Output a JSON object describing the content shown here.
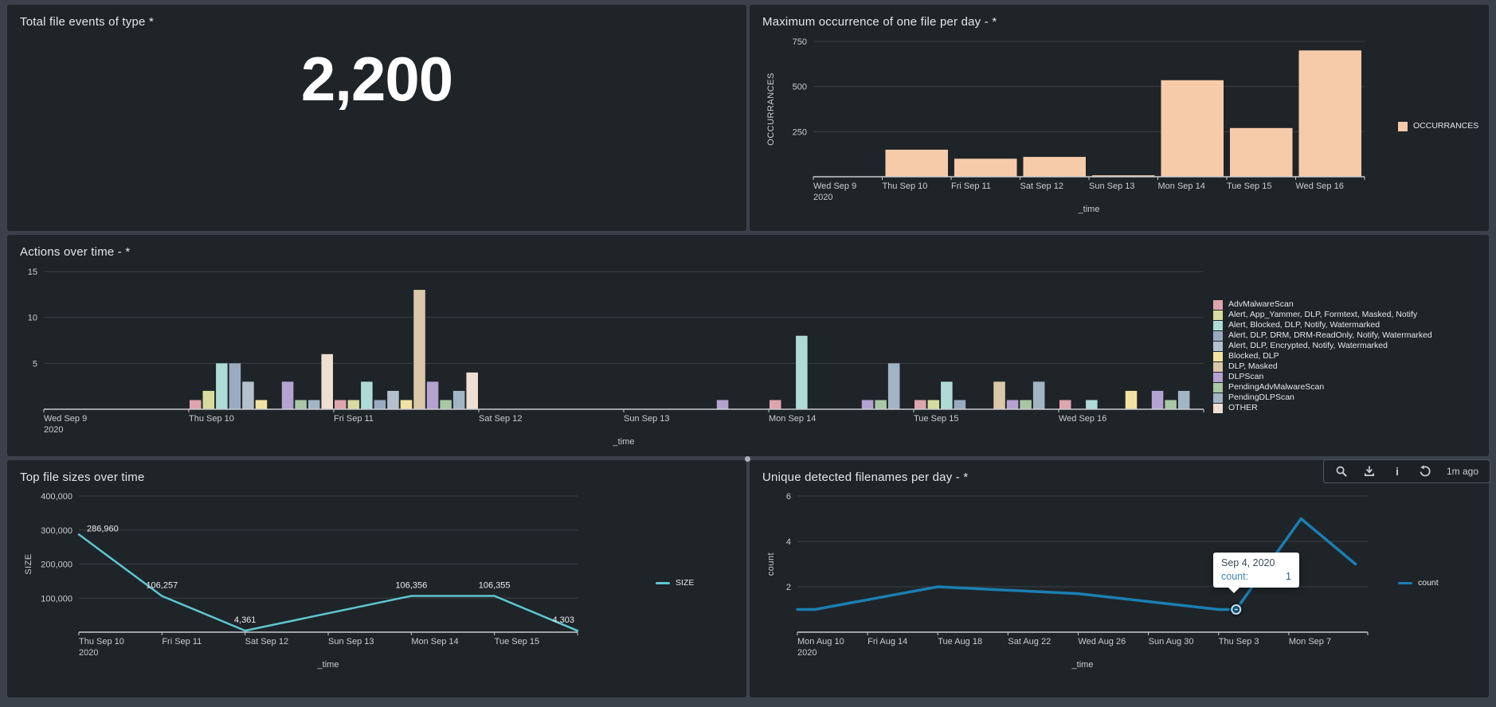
{
  "toolbar": {
    "age": "1m ago",
    "icons": [
      "search",
      "download",
      "info",
      "refresh"
    ]
  },
  "colors": {
    "page_bg": "#3a414b",
    "panel_bg": "#1f2428",
    "axis": "#c9ccd1",
    "grid": "#3a3f45",
    "bar_peach": "#f6cbaa",
    "line_teal": "#5fc6d0",
    "line_blue": "#1b7eb3"
  },
  "chart_data": [
    {
      "id": "total",
      "type": "single_value",
      "title": "Total file events of type *",
      "value": "2,200"
    },
    {
      "id": "occ",
      "type": "bar",
      "title": "Maximum occurrence of one file per day - *",
      "xlabel": "_time",
      "ylabel": "OCCURRANCES",
      "categories": [
        "Wed Sep 9",
        "Thu Sep 10",
        "Fri Sep 11",
        "Sat Sep 12",
        "Sun Sep 13",
        "Mon Sep 14",
        "Tue Sep 15",
        "Wed Sep 16"
      ],
      "first_tick_year": "2020",
      "values": [
        0,
        150,
        100,
        110,
        8,
        535,
        270,
        700
      ],
      "ylim": [
        0,
        750
      ],
      "yticks": [
        {
          "v": 250,
          "label": "250"
        },
        {
          "v": 500,
          "label": "500"
        },
        {
          "v": 750,
          "label": "750"
        }
      ],
      "bar_color": "#f6cbaa",
      "legend": [
        {
          "label": "OCCURRANCES",
          "color": "#f6cbaa",
          "shape": "square"
        }
      ]
    },
    {
      "id": "actions",
      "type": "grouped_bar",
      "title": "Actions over time - *",
      "xlabel": "_time",
      "categories": [
        "Wed Sep 9",
        "Thu Sep 10",
        "Fri Sep 11",
        "Sat Sep 12",
        "Sun Sep 13",
        "Mon Sep 14",
        "Tue Sep 15",
        "Wed Sep 16"
      ],
      "first_tick_year": "2020",
      "ylim": [
        0,
        15
      ],
      "yticks": [
        {
          "v": 5,
          "label": "5"
        },
        {
          "v": 10,
          "label": "10"
        },
        {
          "v": 15,
          "label": "15"
        }
      ],
      "series": [
        {
          "name": "AdvMalwareScan",
          "color": "#dda5ad",
          "values": [
            0,
            1,
            1,
            0,
            0,
            1,
            1,
            1
          ]
        },
        {
          "name": "Alert, App_Yammer, DLP, Formtext, Masked, Notify",
          "color": "#d6db9f",
          "values": [
            0,
            2,
            1,
            0,
            0,
            0,
            1,
            0
          ]
        },
        {
          "name": "Alert, Blocked, DLP, Notify, Watermarked",
          "color": "#aedbd5",
          "values": [
            0,
            5,
            3,
            0,
            0,
            8,
            3,
            1
          ]
        },
        {
          "name": "Alert, DLP, DRM, DRM-ReadOnly, Notify, Watermarked",
          "color": "#98abc1",
          "values": [
            0,
            5,
            1,
            0,
            0,
            0,
            1,
            0
          ]
        },
        {
          "name": "Alert, DLP, Encrypted, Notify, Watermarked",
          "color": "#b4c0cc",
          "values": [
            0,
            3,
            2,
            0,
            0,
            0,
            0,
            0
          ]
        },
        {
          "name": "Blocked, DLP",
          "color": "#f2e3a2",
          "values": [
            0,
            1,
            1,
            0,
            0,
            0,
            0,
            2
          ]
        },
        {
          "name": "DLP, Masked",
          "color": "#dbc7a9",
          "values": [
            0,
            0,
            13,
            0,
            0,
            0,
            3,
            0
          ]
        },
        {
          "name": "DLPScan",
          "color": "#b4a3d0",
          "values": [
            0,
            3,
            3,
            0,
            1,
            1,
            1,
            2
          ]
        },
        {
          "name": "PendingAdvMalwareScan",
          "color": "#a8c7a4",
          "values": [
            0,
            1,
            1,
            0,
            0,
            1,
            1,
            1
          ]
        },
        {
          "name": "PendingDLPScan",
          "color": "#a2b5c5",
          "values": [
            0,
            1,
            2,
            0,
            0,
            5,
            3,
            2
          ]
        },
        {
          "name": "OTHER",
          "color": "#efdfd3",
          "values": [
            0,
            6,
            4,
            0,
            0,
            0,
            0,
            0
          ]
        }
      ]
    },
    {
      "id": "sizes",
      "type": "line",
      "title": "Top file sizes over time",
      "xlabel": "_time",
      "ylabel": "SIZE",
      "x_tick_labels": [
        "Thu Sep 10",
        "Fri Sep 11",
        "Sat Sep 12",
        "Sun Sep 13",
        "Mon Sep 14",
        "Tue Sep 15"
      ],
      "first_tick_year": "2020",
      "x_tick_step": 1,
      "x_extent": 6,
      "ylim": [
        0,
        400000
      ],
      "yticks": [
        {
          "v": 100000,
          "label": "100,000"
        },
        {
          "v": 200000,
          "label": "200,000"
        },
        {
          "v": 300000,
          "label": "300,000"
        },
        {
          "v": 400000,
          "label": "400,000"
        }
      ],
      "line_color": "#5fc6d0",
      "points": [
        {
          "x": 0,
          "y": 286960,
          "label": "286,960"
        },
        {
          "x": 1,
          "y": 106257,
          "label": "106,257"
        },
        {
          "x": 2,
          "y": 4361,
          "label": "4,361"
        },
        {
          "x": 4,
          "y": 106356,
          "label": "106,356"
        },
        {
          "x": 5,
          "y": 106355,
          "label": "106,355"
        },
        {
          "x": 6,
          "y": 4303,
          "label": "4,303"
        }
      ],
      "legend": [
        {
          "label": "SIZE",
          "color": "#5fc6d0",
          "shape": "line"
        }
      ]
    },
    {
      "id": "unique",
      "type": "line",
      "title": "Unique detected filenames per day - *",
      "xlabel": "_time",
      "ylabel": "count",
      "x_tick_labels": [
        "Mon Aug 10",
        "Fri Aug 14",
        "Tue Aug 18",
        "Sat Aug 22",
        "Wed Aug 26",
        "Sun Aug 30",
        "Thu Sep 3",
        "Mon Sep 7"
      ],
      "first_tick_year": "2020",
      "x_tick_step": 4,
      "x_extent": 32.5,
      "ylim": [
        0,
        6
      ],
      "yticks": [
        {
          "v": 2,
          "label": "2"
        },
        {
          "v": 4,
          "label": "4"
        },
        {
          "v": 6,
          "label": "6"
        }
      ],
      "line_color": "#1b7eb3",
      "points": [
        {
          "x": 0,
          "y": 1
        },
        {
          "x": 1,
          "y": 1
        },
        {
          "x": 8,
          "y": 2
        },
        {
          "x": 16,
          "y": 1.7
        },
        {
          "x": 24,
          "y": 1
        },
        {
          "x": 25,
          "y": 1
        },
        {
          "x": 28.7,
          "y": 5
        },
        {
          "x": 31.8,
          "y": 3
        }
      ],
      "marker": {
        "x": 25,
        "y": 1
      },
      "tooltip": {
        "date": "Sep 4, 2020",
        "label": "count:",
        "value": "1"
      },
      "legend": [
        {
          "label": "count",
          "color": "#1b7eb3",
          "shape": "line"
        }
      ]
    }
  ]
}
